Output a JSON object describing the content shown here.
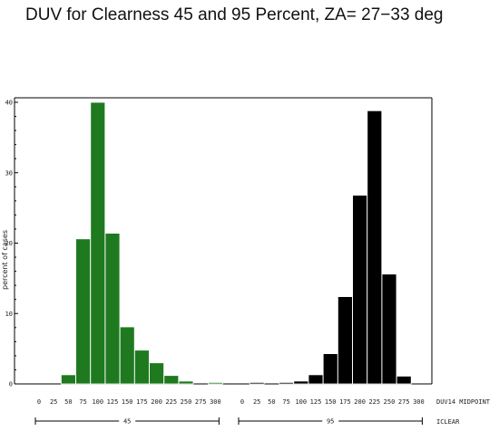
{
  "chart_data": {
    "type": "bar",
    "title": "DUV for Clearness 45 and 95 Percent, ZA= 27−33 deg",
    "ylabel": "percent of cases",
    "ylim": [
      0,
      40
    ],
    "yticks": [
      "0",
      "10",
      "20",
      "30",
      "40"
    ],
    "xlabel": "DUV14 MIDPOINT",
    "group_label": "ICLEAR",
    "categories": [
      "0",
      "25",
      "50",
      "75",
      "100",
      "125",
      "150",
      "175",
      "200",
      "225",
      "250",
      "275",
      "300"
    ],
    "tick_labels": [
      "0",
      "25",
      "50",
      "75",
      "100",
      "125",
      "150",
      "175",
      "200",
      "225",
      "250",
      "275",
      "300"
    ],
    "groups": [
      {
        "name": "45",
        "color": "#1f7a1f",
        "values": [
          0,
          0,
          1.3,
          20.6,
          40.0,
          21.4,
          8.1,
          4.8,
          3.0,
          1.2,
          0.4,
          0,
          0.2
        ]
      },
      {
        "name": "95",
        "color": "#000000",
        "values": [
          0,
          0.2,
          0,
          0.2,
          0.4,
          1.3,
          4.3,
          12.4,
          26.8,
          38.8,
          15.6,
          1.1,
          0
        ]
      }
    ]
  }
}
